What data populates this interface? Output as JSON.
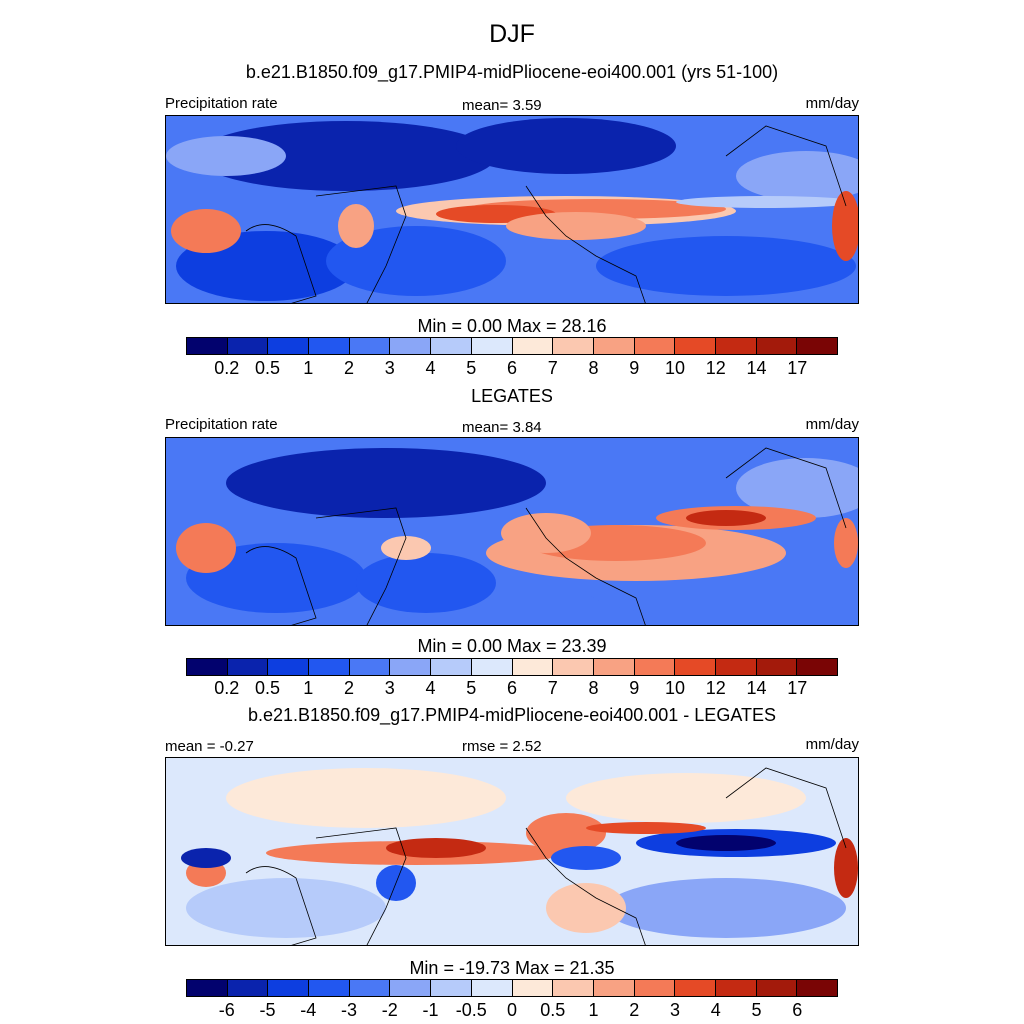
{
  "title": "DJF",
  "panel1": {
    "title": "b.e21.B1850.f09_g17.PMIP4-midPliocene-eoi400.001 (yrs 51-100)",
    "left_label": "Precipitation rate",
    "center_label": "mean=   3.59",
    "right_label": "mm/day",
    "minmax": "Min =   0.00 Max =  28.16",
    "ticks": [
      "0.2",
      "0.5",
      "1",
      "2",
      "3",
      "4",
      "5",
      "6",
      "7",
      "8",
      "9",
      "10",
      "12",
      "14",
      "17"
    ]
  },
  "panel2": {
    "title": "LEGATES",
    "left_label": "Precipitation rate",
    "center_label": "mean=   3.84",
    "right_label": "mm/day",
    "minmax": "Min =   0.00 Max =  23.39",
    "ticks": [
      "0.2",
      "0.5",
      "1",
      "2",
      "3",
      "4",
      "5",
      "6",
      "7",
      "8",
      "9",
      "10",
      "12",
      "14",
      "17"
    ]
  },
  "panel3": {
    "title": "b.e21.B1850.f09_g17.PMIP4-midPliocene-eoi400.001 - LEGATES",
    "left_label": "mean =  -0.27",
    "center_label": "rmse =   2.52",
    "right_label": "mm/day",
    "minmax": "Min = -19.73 Max =  21.35",
    "ticks": [
      "-6",
      "-5",
      "-4",
      "-3",
      "-2",
      "-1",
      "-0.5",
      "0",
      "0.5",
      "1",
      "2",
      "3",
      "4",
      "5",
      "6"
    ]
  },
  "colorbar_colors": [
    "#02026e",
    "#0a23ad",
    "#0d3ee0",
    "#2257f0",
    "#4a78f5",
    "#8aa6f7",
    "#b6cbfa",
    "#dce8fc",
    "#fde9d9",
    "#fbc8b0",
    "#f8a283",
    "#f47a57",
    "#e54a26",
    "#c42a12",
    "#a31a0b",
    "#7a0505"
  ]
}
